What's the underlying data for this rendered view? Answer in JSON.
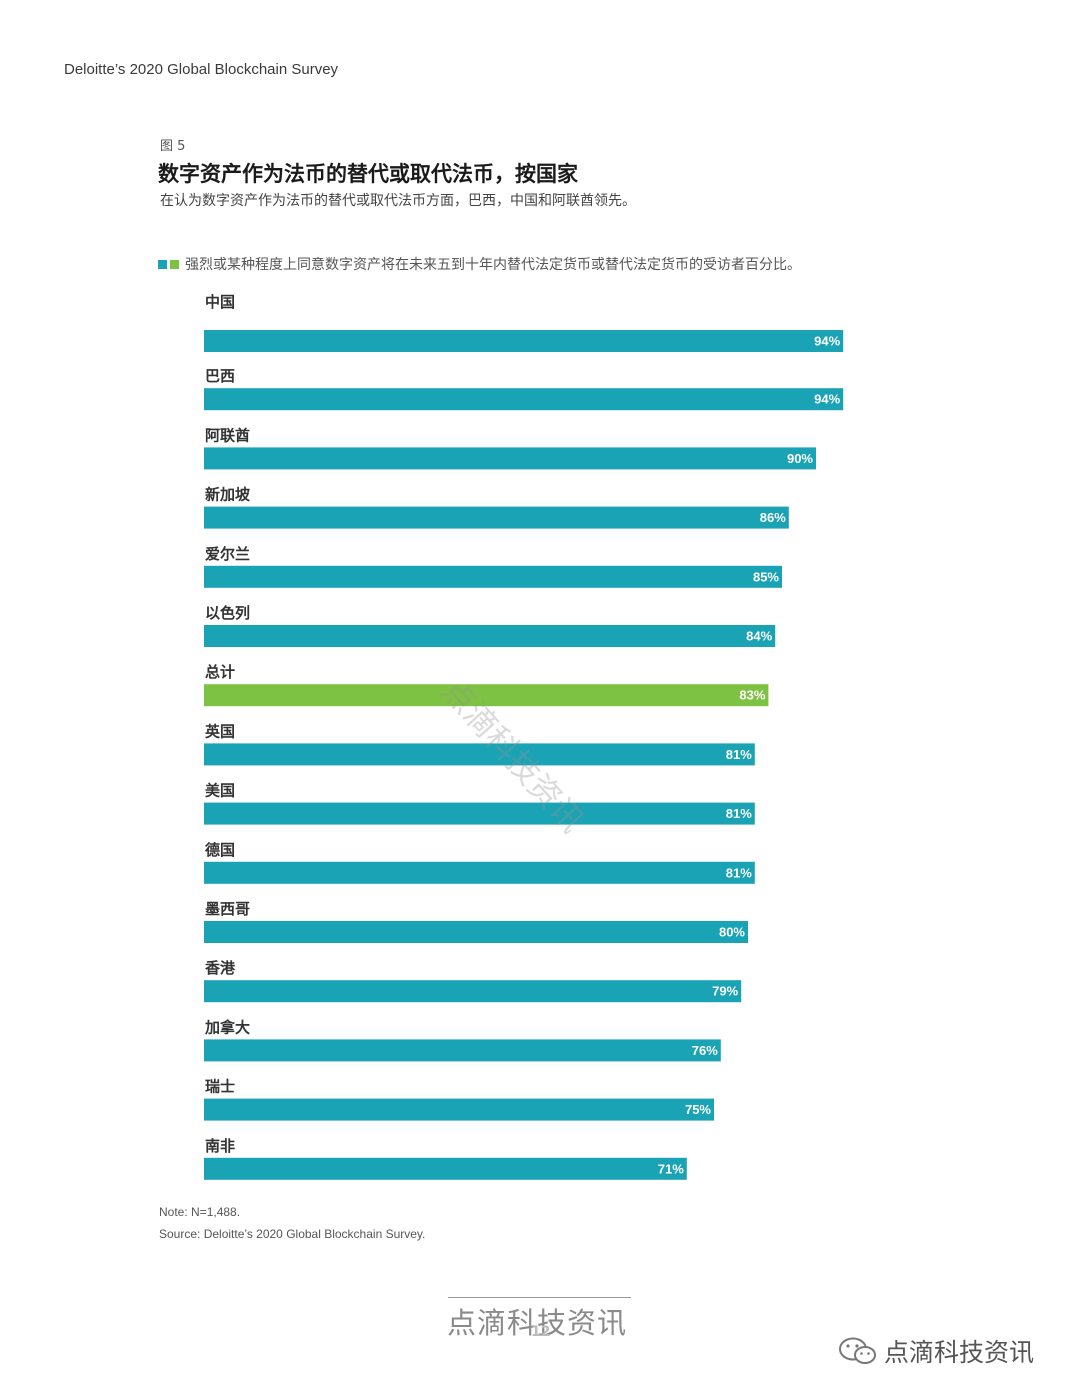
{
  "page": {
    "running_header": "Deloitte’s 2020 Global Blockchain Survey",
    "figure_label": "图 5",
    "note": "Note: N=1,488.",
    "source": "Source: Deloitte’s 2020 Global Blockchain Survey.",
    "page_number": "12",
    "footer_watermark": "点滴科技资讯",
    "diagonal_watermark": "点滴科技资讯",
    "brand_text": "点滴科技资讯"
  },
  "colors": {
    "bar": "#1AA3B4",
    "highlight": "#7DC242",
    "value_text": "#ffffff"
  },
  "chart_data": {
    "type": "bar",
    "orientation": "horizontal",
    "title": "数字资产作为法币的替代或取代法币，按国家",
    "subtitle": "在认为数字资产作为法币的替代或取代法币方面，巴西，中国和阿联酋领先。",
    "legend": "强烈或某种程度上同意数字资产将在未来五到十年内替代法定货币或替代法定货币的受访者百分比。",
    "categories": [
      "中国",
      "巴西",
      "阿联酋",
      "新加坡",
      "爱尔兰",
      "以色列",
      "总计",
      "英国",
      "美国",
      "德国",
      "墨西哥",
      "香港",
      "加拿大",
      "瑞士",
      "南非"
    ],
    "values": [
      94,
      94,
      90,
      86,
      85,
      84,
      83,
      81,
      81,
      81,
      80,
      79,
      76,
      75,
      71
    ],
    "value_labels": [
      "94%",
      "94%",
      "90%",
      "86%",
      "85%",
      "84%",
      "83%",
      "81%",
      "81%",
      "81%",
      "80%",
      "79%",
      "76%",
      "75%",
      "71%"
    ],
    "highlight_category": "总计",
    "xlim": [
      0,
      100
    ],
    "grid": false
  }
}
